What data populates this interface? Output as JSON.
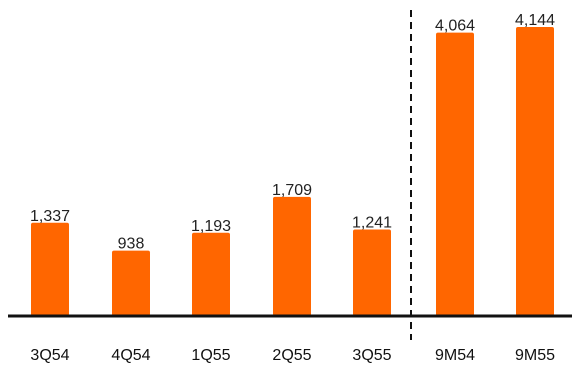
{
  "chart_data": {
    "type": "bar",
    "categories": [
      "3Q54",
      "4Q54",
      "1Q55",
      "2Q55",
      "3Q55",
      "9M54",
      "9M55"
    ],
    "values": [
      1337,
      938,
      1193,
      1709,
      1241,
      4064,
      4144
    ],
    "value_labels": [
      "1,337",
      "938",
      "1,193",
      "1,709",
      "1,241",
      "4,064",
      "4,144"
    ],
    "title": "",
    "xlabel": "",
    "ylabel": "",
    "ylim": [
      0,
      4144
    ],
    "grid": false,
    "legend": "none",
    "separator_after_category_index": 4,
    "bar_color": "#ff6600"
  }
}
